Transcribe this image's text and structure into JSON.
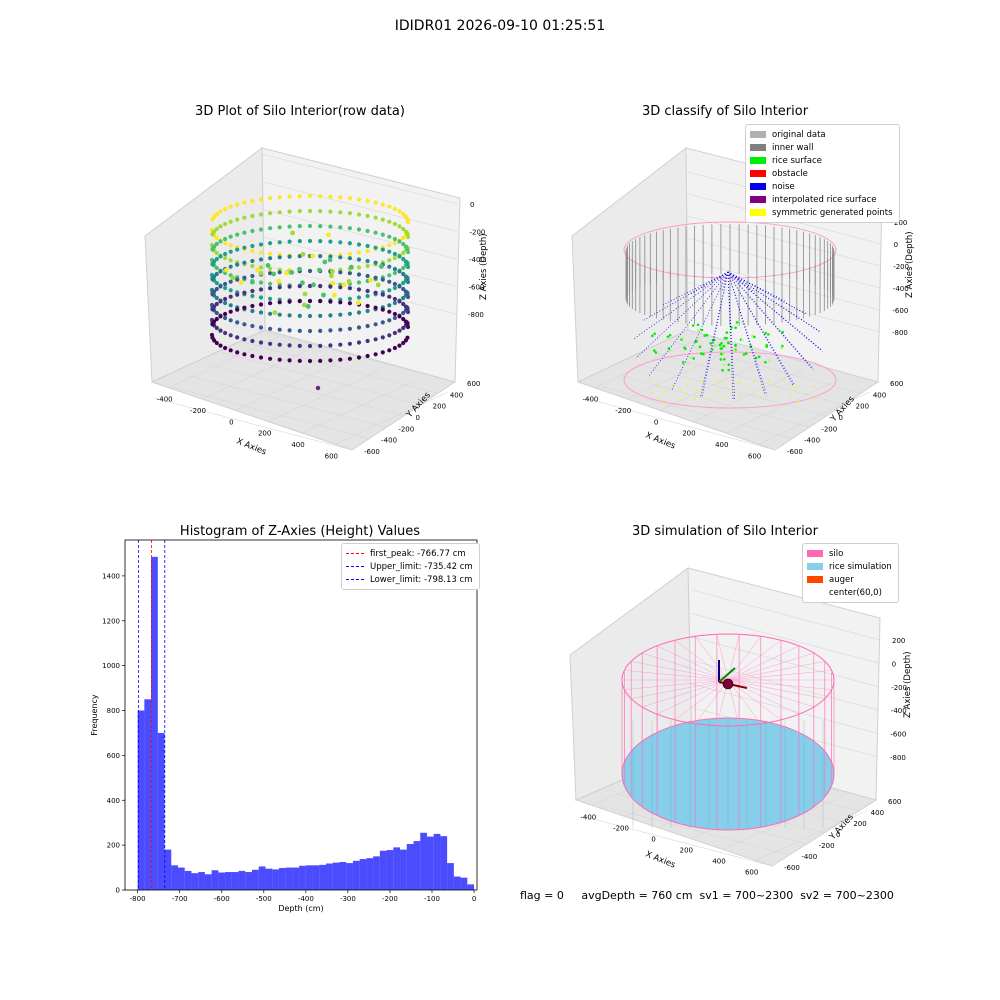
{
  "suptitle": "IDIDR01 2026-09-10 01:25:51",
  "status_line": "flag = 0     avgDepth = 760 cm  sv1 = 700~2300  sv2 = 700~2300",
  "chart_data": [
    {
      "type": "scatter",
      "title": "3D Plot of Silo Interior(row data)",
      "xlabel": "X Axies",
      "ylabel": "Y Axies",
      "zlabel": "Z Axies (Depth)",
      "x_ticks": [
        "-400",
        "-200",
        "0",
        "200",
        "400",
        "600"
      ],
      "y_ticks": [
        "-600",
        "-400",
        "-200",
        "0",
        "200",
        "400",
        "600"
      ],
      "z_ticks": [
        "0",
        "-200",
        "-400",
        "-600",
        "-800"
      ],
      "colormap": "viridis",
      "grid": true
    },
    {
      "type": "scatter",
      "title": "3D classify of Silo Interior",
      "xlabel": "X Axies",
      "ylabel": "Y Axies",
      "zlabel": "Z Axies (Depth)",
      "x_ticks": [
        "-400",
        "-200",
        "0",
        "200",
        "400",
        "600"
      ],
      "y_ticks": [
        "-600",
        "-400",
        "-200",
        "0",
        "200",
        "400",
        "600"
      ],
      "z_ticks": [
        "200",
        "0",
        "-200",
        "-400",
        "-600",
        "-800"
      ],
      "legend_position": "top-right",
      "legend": [
        {
          "label": "original data",
          "color": "#b0b0b0"
        },
        {
          "label": "inner wall",
          "color": "#808080"
        },
        {
          "label": "rice surface",
          "color": "#00ee00"
        },
        {
          "label": "obstacle",
          "color": "#ff0000"
        },
        {
          "label": "noise",
          "color": "#0000ee"
        },
        {
          "label": "interpolated rice surface",
          "color": "#800080"
        },
        {
          "label": "symmetric generated points",
          "color": "#ffff00"
        }
      ],
      "grid": true
    },
    {
      "type": "bar",
      "title": "Histogram of Z-Axies (Height) Values",
      "xlabel": "Depth (cm)",
      "ylabel": "Frequency",
      "xlim": [
        -830,
        7
      ],
      "ylim": [
        0,
        1560
      ],
      "x_ticks": [
        -800,
        -700,
        -600,
        -500,
        -400,
        -300,
        -200,
        -100,
        0
      ],
      "y_ticks": [
        0,
        200,
        400,
        600,
        800,
        1000,
        1200,
        1400
      ],
      "bin_width": 16,
      "bin_starts": [
        -800,
        -784,
        -768,
        -752,
        -736,
        -720,
        -704,
        -688,
        -672,
        -656,
        -640,
        -624,
        -608,
        -592,
        -576,
        -560,
        -544,
        -528,
        -512,
        -496,
        -480,
        -464,
        -448,
        -432,
        -416,
        -400,
        -384,
        -368,
        -352,
        -336,
        -320,
        -304,
        -288,
        -272,
        -256,
        -240,
        -224,
        -208,
        -192,
        -176,
        -160,
        -144,
        -128,
        -112,
        -96,
        -80,
        -64,
        -48,
        -32,
        -16
      ],
      "values": [
        800,
        850,
        1485,
        700,
        180,
        110,
        100,
        85,
        75,
        80,
        70,
        88,
        78,
        80,
        80,
        85,
        80,
        90,
        105,
        95,
        92,
        98,
        100,
        100,
        108,
        110,
        110,
        112,
        118,
        122,
        125,
        120,
        130,
        138,
        142,
        150,
        175,
        178,
        190,
        180,
        205,
        218,
        255,
        238,
        250,
        240,
        120,
        60,
        55,
        25
      ],
      "bar_color": "#0000ff",
      "vlines": [
        {
          "label": "first_peak: -766.77 cm",
          "x": -766.77,
          "color": "#ff0000"
        },
        {
          "label": "Upper_limit: -735.42 cm",
          "x": -735.42,
          "color": "#0000ff"
        },
        {
          "label": "Lower_limit: -798.13 cm",
          "x": -798.13,
          "color": "#0000ff"
        }
      ],
      "legend_position": "top-right",
      "grid": false
    },
    {
      "type": "scatter",
      "title": "3D simulation of Silo Interior",
      "xlabel": "X Axies",
      "ylabel": "Y Axies",
      "zlabel": "Z Axies (Depth)",
      "x_ticks": [
        "-400",
        "-200",
        "0",
        "200",
        "400",
        "600"
      ],
      "y_ticks": [
        "-600",
        "-400",
        "-200",
        "0",
        "200",
        "400",
        "600"
      ],
      "z_ticks": [
        "200",
        "0",
        "-200",
        "-400",
        "-600",
        "-800"
      ],
      "legend_position": "top-right",
      "legend": [
        {
          "label": "silo",
          "color": "#ff69b4"
        },
        {
          "label": "rice simulation",
          "color": "#87ceeb"
        },
        {
          "label": "auger",
          "color": "#ff4500"
        },
        {
          "label": "center(60,0)",
          "color": "#ffffff"
        }
      ],
      "grid": true
    }
  ]
}
